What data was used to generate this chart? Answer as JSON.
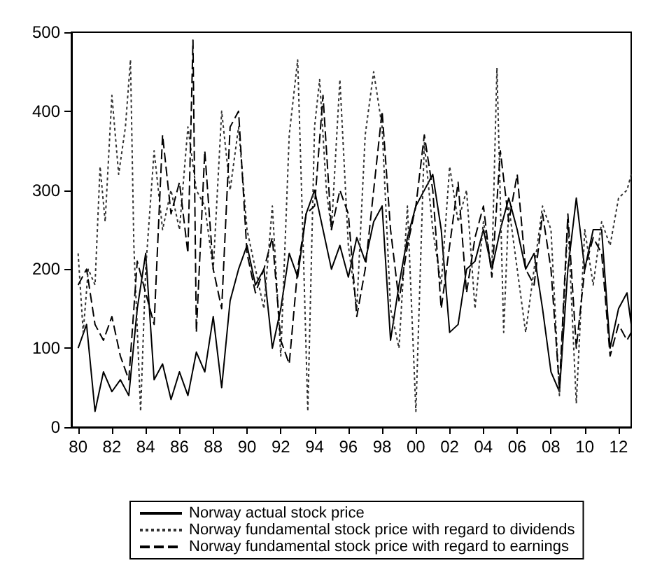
{
  "chart_data": {
    "type": "line",
    "xlim": [
      1979.6,
      2012.75
    ],
    "ylim": [
      0,
      500
    ],
    "xticks": [
      {
        "value": 1980,
        "label": "80"
      },
      {
        "value": 1982,
        "label": "82"
      },
      {
        "value": 1984,
        "label": "84"
      },
      {
        "value": 1986,
        "label": "86"
      },
      {
        "value": 1988,
        "label": "88"
      },
      {
        "value": 1990,
        "label": "90"
      },
      {
        "value": 1992,
        "label": "92"
      },
      {
        "value": 1994,
        "label": "94"
      },
      {
        "value": 1996,
        "label": "96"
      },
      {
        "value": 1998,
        "label": "98"
      },
      {
        "value": 2000,
        "label": "00"
      },
      {
        "value": 2002,
        "label": "02"
      },
      {
        "value": 2004,
        "label": "04"
      },
      {
        "value": 2006,
        "label": "06"
      },
      {
        "value": 2008,
        "label": "08"
      },
      {
        "value": 2010,
        "label": "10"
      },
      {
        "value": 2012,
        "label": "12"
      }
    ],
    "yticks": [
      0,
      100,
      200,
      300,
      400,
      500
    ],
    "grid": false,
    "legend": "bottom",
    "marker": "none",
    "series": [
      {
        "name": "Norway actual stock price",
        "color": "#000000",
        "line_style": "solid",
        "x": [
          1980,
          1980.5,
          1981,
          1981.5,
          1982,
          1982.5,
          1983,
          1983.5,
          1984,
          1984.5,
          1985,
          1985.5,
          1986,
          1986.5,
          1987,
          1987.5,
          1988,
          1988.5,
          1989,
          1989.5,
          1990,
          1990.5,
          1991,
          1991.5,
          1992,
          1992.5,
          1993,
          1993.5,
          1994,
          1994.5,
          1995,
          1995.5,
          1996,
          1996.5,
          1997,
          1997.5,
          1998,
          1998.5,
          1999,
          1999.5,
          2000,
          2000.5,
          2001,
          2001.5,
          2002,
          2002.5,
          2003,
          2003.5,
          2004,
          2004.5,
          2005,
          2005.5,
          2006,
          2006.5,
          2007,
          2007.5,
          2008,
          2008.5,
          2009,
          2009.5,
          2010,
          2010.5,
          2011,
          2011.5,
          2012,
          2012.5,
          2012.75
        ],
        "values": [
          100,
          130,
          20,
          70,
          45,
          60,
          40,
          150,
          220,
          60,
          80,
          35,
          70,
          40,
          95,
          70,
          140,
          50,
          160,
          200,
          230,
          180,
          200,
          100,
          150,
          220,
          190,
          270,
          300,
          250,
          200,
          230,
          190,
          240,
          210,
          260,
          280,
          110,
          180,
          240,
          280,
          300,
          320,
          250,
          120,
          130,
          200,
          210,
          250,
          200,
          250,
          290,
          250,
          200,
          220,
          150,
          70,
          45,
          200,
          290,
          200,
          250,
          250,
          100,
          150,
          170,
          130
        ]
      },
      {
        "name": "Norway fundamental stock price with regard to dividends",
        "color": "#333333",
        "line_style": "dotted",
        "x": [
          1980,
          1980.3,
          1980.6,
          1981,
          1981.3,
          1981.6,
          1982,
          1982.4,
          1982.8,
          1983.1,
          1983.3,
          1983.7,
          1984,
          1984.5,
          1985,
          1985.5,
          1986,
          1986.5,
          1987,
          1987.5,
          1988,
          1988.5,
          1989,
          1989.5,
          1990,
          1990.5,
          1991,
          1991.5,
          1992,
          1992.5,
          1993,
          1993.3,
          1993.6,
          1994,
          1994.3,
          1994.7,
          1995,
          1995.5,
          1996,
          1996.5,
          1997,
          1997.5,
          1998,
          1998.5,
          1999,
          1999.5,
          2000,
          2000.5,
          2001,
          2001.5,
          2002,
          2002.5,
          2003,
          2003.5,
          2004,
          2004.5,
          2004.8,
          2005.2,
          2005.5,
          2006,
          2006.5,
          2007,
          2007.5,
          2008,
          2008.5,
          2009,
          2009.5,
          2010,
          2010.5,
          2011,
          2011.5,
          2012,
          2012.5,
          2012.75
        ],
        "values": [
          220,
          120,
          200,
          180,
          330,
          260,
          420,
          320,
          380,
          465,
          230,
          20,
          200,
          350,
          250,
          300,
          250,
          380,
          300,
          280,
          200,
          400,
          300,
          380,
          250,
          200,
          150,
          280,
          90,
          370,
          465,
          250,
          20,
          380,
          440,
          300,
          250,
          440,
          230,
          150,
          370,
          450,
          380,
          150,
          100,
          280,
          20,
          360,
          250,
          180,
          330,
          260,
          300,
          150,
          260,
          200,
          455,
          120,
          280,
          200,
          120,
          200,
          280,
          250,
          40,
          260,
          30,
          250,
          180,
          260,
          230,
          290,
          300,
          320
        ]
      },
      {
        "name": "Norway fundamental stock price with regard to earnings",
        "color": "#000000",
        "line_style": "dashed",
        "x": [
          1980,
          1980.5,
          1981,
          1981.5,
          1982,
          1982.5,
          1983,
          1983.5,
          1984,
          1984.5,
          1985,
          1985.5,
          1986,
          1986.5,
          1986.8,
          1987,
          1987.5,
          1988,
          1988.5,
          1989,
          1989.5,
          1990,
          1990.5,
          1991,
          1991.5,
          1992,
          1992.5,
          1993,
          1993.5,
          1994,
          1994.5,
          1995,
          1995.5,
          1996,
          1996.5,
          1997,
          1997.5,
          1998,
          1998.5,
          1999,
          1999.5,
          2000,
          2000.5,
          2001,
          2001.5,
          2002,
          2002.5,
          2003,
          2003.5,
          2004,
          2004.5,
          2005,
          2005.5,
          2006,
          2006.5,
          2007,
          2007.5,
          2008,
          2008.5,
          2009,
          2009.5,
          2010,
          2010.5,
          2011,
          2011.5,
          2012,
          2012.5,
          2012.75
        ],
        "values": [
          180,
          200,
          130,
          110,
          140,
          90,
          60,
          210,
          170,
          130,
          370,
          270,
          310,
          220,
          490,
          120,
          350,
          200,
          150,
          380,
          400,
          220,
          170,
          200,
          240,
          110,
          80,
          200,
          270,
          280,
          420,
          250,
          300,
          270,
          140,
          200,
          300,
          400,
          250,
          160,
          230,
          280,
          370,
          300,
          150,
          230,
          310,
          170,
          240,
          280,
          190,
          350,
          260,
          320,
          200,
          180,
          270,
          200,
          50,
          270,
          100,
          200,
          240,
          220,
          90,
          130,
          110,
          120
        ]
      }
    ]
  }
}
